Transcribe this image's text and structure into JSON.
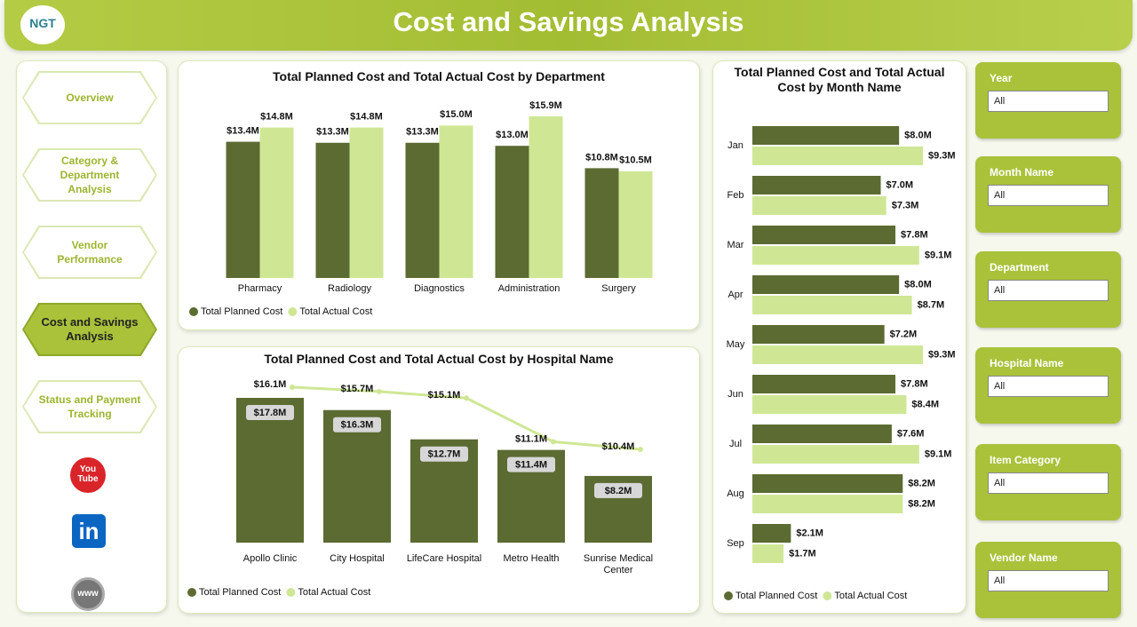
{
  "header": {
    "logo": "NGT",
    "title": "Cost and Savings Analysis"
  },
  "nav": {
    "items": [
      "Overview",
      "Category & Department Analysis",
      "Vendor Performance",
      "Cost and Savings Analysis",
      "Status and Payment Tracking"
    ]
  },
  "social": {
    "youtube": "You Tube",
    "linkedin": "in",
    "web": "www"
  },
  "filters": [
    {
      "label": "Year",
      "value": "All"
    },
    {
      "label": "Month Name",
      "value": "All"
    },
    {
      "label": "Department",
      "value": "All"
    },
    {
      "label": "Hospital Name",
      "value": "All"
    },
    {
      "label": "Item Category",
      "value": "All"
    },
    {
      "label": "Vendor Name",
      "value": "All"
    }
  ],
  "chart_data": [
    {
      "type": "bar",
      "title": "Total Planned Cost and Total Actual Cost by Department",
      "categories": [
        "Pharmacy",
        "Radiology",
        "Diagnostics",
        "Administration",
        "Surgery"
      ],
      "series": [
        {
          "name": "Total Planned Cost",
          "color": "#5b6b32",
          "values": [
            13.4,
            13.3,
            13.3,
            13.0,
            10.8
          ],
          "value_labels": [
            "$13.4M",
            "$13.3M",
            "$13.3M",
            "$13.0M",
            "$10.8M"
          ]
        },
        {
          "name": "Total Actual Cost",
          "color": "#cfe795",
          "values": [
            14.8,
            14.8,
            15.0,
            15.9,
            10.5
          ],
          "value_labels": [
            "$14.8M",
            "$14.8M",
            "$15.0M",
            "$15.9M",
            "$10.5M"
          ]
        }
      ]
    },
    {
      "type": "combo",
      "title": "Total Planned Cost and Total Actual Cost by Hospital Name",
      "categories": [
        "Apollo Clinic",
        "City Hospital",
        "LifeCare Hospital",
        "Metro Health",
        "Sunrise Medical Center"
      ],
      "series": [
        {
          "name": "Total Planned Cost",
          "type": "bar",
          "color": "#5b6b32",
          "values": [
            17.8,
            16.3,
            12.7,
            11.4,
            8.2
          ],
          "value_labels": [
            "$17.8M",
            "$16.3M",
            "$12.7M",
            "$11.4M",
            "$8.2M"
          ]
        },
        {
          "name": "Total Actual Cost",
          "type": "line",
          "color": "#cfe795",
          "values": [
            16.1,
            15.7,
            15.1,
            11.1,
            10.4
          ],
          "value_labels": [
            "$16.1M",
            "$15.7M",
            "$15.1M",
            "$11.1M",
            "$10.4M"
          ]
        }
      ]
    },
    {
      "type": "barh",
      "title": "Total Planned Cost and Total Actual Cost by Month Name",
      "categories": [
        "Jan",
        "Feb",
        "Mar",
        "Apr",
        "May",
        "Jun",
        "Jul",
        "Aug",
        "Sep"
      ],
      "series": [
        {
          "name": "Total Planned Cost",
          "color": "#5b6b32",
          "values": [
            8.0,
            7.0,
            7.8,
            8.0,
            7.2,
            7.8,
            7.6,
            8.2,
            2.1
          ],
          "value_labels": [
            "$8.0M",
            "$7.0M",
            "$7.8M",
            "$8.0M",
            "$7.2M",
            "$7.8M",
            "$7.6M",
            "$8.2M",
            "$2.1M"
          ]
        },
        {
          "name": "Total Actual Cost",
          "color": "#cfe795",
          "values": [
            9.3,
            7.3,
            9.1,
            8.7,
            9.3,
            8.4,
            9.1,
            8.2,
            1.7
          ],
          "value_labels": [
            "$9.3M",
            "$7.3M",
            "$9.1M",
            "$8.7M",
            "$9.3M",
            "$8.4M",
            "$9.1M",
            "$8.2M",
            "$1.7M"
          ]
        }
      ]
    }
  ]
}
